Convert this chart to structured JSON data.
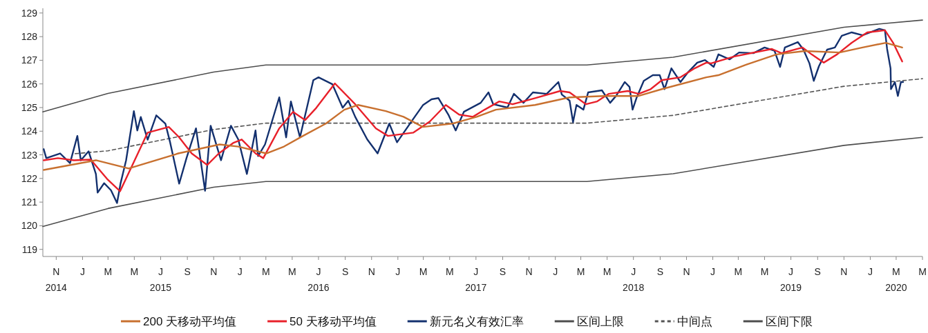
{
  "chart_data": {
    "type": "line",
    "xlim": [
      "2014-10-01",
      "2020-05-01"
    ],
    "ylim": [
      118.7,
      129.2
    ],
    "yticks": [
      119,
      120,
      121,
      122,
      123,
      124,
      125,
      126,
      127,
      128,
      129
    ],
    "xticks": [
      {
        "value": "2014-11-01",
        "label": "N\n2014"
      },
      {
        "value": "2015-01-01",
        "label": "J"
      },
      {
        "value": "2015-03-01",
        "label": "M"
      },
      {
        "value": "2015-05-01",
        "label": "M"
      },
      {
        "value": "2015-07-01",
        "label": "J\n2015"
      },
      {
        "value": "2015-09-01",
        "label": "S"
      },
      {
        "value": "2015-11-01",
        "label": "N"
      },
      {
        "value": "2016-01-01",
        "label": "J"
      },
      {
        "value": "2016-03-01",
        "label": "M"
      },
      {
        "value": "2016-05-01",
        "label": "M"
      },
      {
        "value": "2016-07-01",
        "label": "J\n2016"
      },
      {
        "value": "2016-09-01",
        "label": "S"
      },
      {
        "value": "2016-11-01",
        "label": "N"
      },
      {
        "value": "2017-01-01",
        "label": "J"
      },
      {
        "value": "2017-03-01",
        "label": "M"
      },
      {
        "value": "2017-05-01",
        "label": "M"
      },
      {
        "value": "2017-07-01",
        "label": "J\n2017"
      },
      {
        "value": "2017-09-01",
        "label": "S"
      },
      {
        "value": "2017-11-01",
        "label": "N"
      },
      {
        "value": "2018-01-01",
        "label": "J"
      },
      {
        "value": "2018-03-01",
        "label": "M"
      },
      {
        "value": "2018-05-01",
        "label": "M"
      },
      {
        "value": "2018-07-01",
        "label": "J\n2018"
      },
      {
        "value": "2018-09-01",
        "label": "S"
      },
      {
        "value": "2018-11-01",
        "label": "N"
      },
      {
        "value": "2019-01-01",
        "label": "J"
      },
      {
        "value": "2019-03-01",
        "label": "M"
      },
      {
        "value": "2019-05-01",
        "label": "M"
      },
      {
        "value": "2019-07-01",
        "label": "J\n2019"
      },
      {
        "value": "2019-09-01",
        "label": "S"
      },
      {
        "value": "2019-11-01",
        "label": "N"
      },
      {
        "value": "2020-01-01",
        "label": "J"
      },
      {
        "value": "2020-03-01",
        "label": "M\n2020"
      },
      {
        "value": "2020-05-01",
        "label": "M"
      }
    ],
    "grid": false,
    "legend": "bottom",
    "series": [
      {
        "name": "200 天移动平均值",
        "color": "#c8702f",
        "x": [
          "2014-10-03",
          "2015-02-01",
          "2015-04-18",
          "2015-08-11",
          "2015-11-15",
          "2015-12-28",
          "2016-03-02",
          "2016-04-12",
          "2016-05-26",
          "2016-07-18",
          "2016-08-30",
          "2016-10-01",
          "2016-12-04",
          "2017-01-14",
          "2017-02-28",
          "2017-05-07",
          "2017-07-03",
          "2017-08-16",
          "2017-11-15",
          "2018-02-03",
          "2018-04-24",
          "2018-07-13",
          "2018-09-05",
          "2018-12-17",
          "2019-01-14",
          "2019-03-19",
          "2019-05-29",
          "2019-08-02",
          "2019-10-22",
          "2019-12-14",
          "2020-02-06",
          "2020-03-15"
        ],
        "values": [
          122.36,
          122.77,
          122.42,
          123.06,
          123.44,
          123.35,
          123.06,
          123.35,
          123.8,
          124.32,
          124.91,
          125.11,
          124.85,
          124.61,
          124.18,
          124.32,
          124.61,
          124.91,
          125.11,
          125.43,
          125.49,
          125.49,
          125.78,
          126.28,
          126.37,
          126.81,
          127.25,
          127.39,
          127.33,
          127.54,
          127.74,
          127.54
        ]
      },
      {
        "name": "50 天移动平均值",
        "color": "#e8202a",
        "x": [
          "2014-10-03",
          "2014-11-05",
          "2014-12-12",
          "2015-01-20",
          "2015-02-27",
          "2015-03-29",
          "2015-04-29",
          "2015-06-01",
          "2015-07-20",
          "2015-08-13",
          "2015-09-11",
          "2015-10-17",
          "2015-11-13",
          "2015-12-16",
          "2016-01-05",
          "2016-02-06",
          "2016-02-24",
          "2016-04-01",
          "2016-05-03",
          "2016-05-31",
          "2016-06-26",
          "2016-08-08",
          "2016-09-24",
          "2016-11-11",
          "2016-12-09",
          "2017-02-06",
          "2017-03-16",
          "2017-04-22",
          "2017-05-23",
          "2017-06-24",
          "2017-07-21",
          "2017-08-24",
          "2017-09-24",
          "2017-11-15",
          "2018-01-12",
          "2018-02-03",
          "2018-03-13",
          "2018-04-08",
          "2018-05-05",
          "2018-06-18",
          "2018-07-13",
          "2018-08-10",
          "2018-09-05",
          "2018-10-18",
          "2018-11-20",
          "2018-12-17",
          "2018-12-28",
          "2019-02-20",
          "2019-05-18",
          "2019-06-09",
          "2019-07-28",
          "2019-08-18",
          "2019-09-15",
          "2019-10-16",
          "2019-11-19",
          "2019-12-25",
          "2020-02-04",
          "2020-02-23",
          "2020-03-15"
        ],
        "values": [
          122.77,
          122.86,
          122.77,
          122.8,
          121.98,
          121.46,
          122.66,
          123.94,
          124.18,
          123.74,
          123.06,
          122.57,
          123.06,
          123.5,
          123.65,
          123.06,
          122.86,
          124.12,
          124.82,
          124.47,
          124.99,
          126.02,
          125.14,
          124.12,
          123.8,
          123.94,
          124.41,
          125.11,
          124.7,
          124.61,
          124.91,
          125.26,
          125.14,
          125.4,
          125.7,
          125.64,
          125.14,
          125.26,
          125.58,
          125.7,
          125.58,
          125.78,
          126.16,
          126.28,
          126.66,
          126.9,
          126.87,
          127.16,
          127.48,
          127.3,
          127.54,
          127.25,
          126.9,
          127.25,
          127.74,
          128.18,
          128.27,
          127.74,
          126.95
        ]
      },
      {
        "name": "新元名义有效汇率",
        "color": "#13306e",
        "x": [
          "2014-10-03",
          "2014-10-09",
          "2014-11-10",
          "2014-12-03",
          "2014-12-20",
          "2014-12-28",
          "2015-01-15",
          "2015-02-01",
          "2015-02-05",
          "2015-02-20",
          "2015-03-08",
          "2015-03-22",
          "2015-03-30",
          "2015-04-12",
          "2015-04-30",
          "2015-05-08",
          "2015-05-16",
          "2015-06-01",
          "2015-06-21",
          "2015-07-12",
          "2015-07-23",
          "2015-08-13",
          "2015-08-30",
          "2015-09-21",
          "2015-10-12",
          "2015-10-25",
          "2015-11-18",
          "2015-12-11",
          "2015-12-28",
          "2016-01-17",
          "2016-02-06",
          "2016-02-12",
          "2016-02-28",
          "2016-04-01",
          "2016-04-17",
          "2016-04-28",
          "2016-05-19",
          "2016-06-19",
          "2016-07-01",
          "2016-08-02",
          "2016-08-26",
          "2016-09-08",
          "2016-09-24",
          "2016-10-22",
          "2016-11-15",
          "2016-12-12",
          "2016-12-30",
          "2017-02-06",
          "2017-02-28",
          "2017-03-20",
          "2017-04-05",
          "2017-04-28",
          "2017-05-15",
          "2017-06-03",
          "2017-07-12",
          "2017-07-30",
          "2017-08-10",
          "2017-09-12",
          "2017-09-27",
          "2017-10-19",
          "2017-11-10",
          "2017-12-12",
          "2018-01-08",
          "2018-01-16",
          "2018-02-03",
          "2018-02-11",
          "2018-02-19",
          "2018-03-07",
          "2018-03-18",
          "2018-04-19",
          "2018-05-08",
          "2018-05-22",
          "2018-06-11",
          "2018-06-22",
          "2018-06-29",
          "2018-07-08",
          "2018-07-25",
          "2018-08-15",
          "2018-08-31",
          "2018-09-11",
          "2018-09-27",
          "2018-10-18",
          "2018-11-03",
          "2018-11-26",
          "2018-12-14",
          "2019-01-03",
          "2019-01-14",
          "2019-02-09",
          "2019-03-03",
          "2019-04-05",
          "2019-05-01",
          "2019-05-24",
          "2019-06-06",
          "2019-06-17",
          "2019-07-17",
          "2019-07-30",
          "2019-08-13",
          "2019-08-23",
          "2019-09-04",
          "2019-09-23",
          "2019-10-11",
          "2019-10-27",
          "2019-11-19",
          "2019-12-14",
          "2020-01-22",
          "2020-02-04",
          "2020-02-09",
          "2020-02-17",
          "2020-02-18",
          "2020-02-27",
          "2020-03-05",
          "2020-03-12",
          "2020-03-17"
        ],
        "values": [
          123.24,
          122.86,
          123.06,
          122.65,
          123.8,
          122.77,
          123.15,
          122.19,
          121.4,
          121.8,
          121.5,
          120.96,
          121.78,
          122.77,
          124.85,
          124.03,
          124.6,
          123.64,
          124.67,
          124.32,
          123.53,
          121.78,
          122.86,
          124.12,
          121.48,
          124.23,
          122.77,
          124.23,
          123.65,
          122.19,
          124.03,
          122.95,
          123.44,
          125.43,
          123.74,
          125.26,
          123.74,
          126.16,
          126.28,
          125.99,
          124.99,
          125.29,
          124.61,
          123.65,
          123.06,
          124.32,
          123.53,
          124.53,
          125.1,
          125.35,
          125.4,
          124.7,
          124.03,
          124.82,
          125.2,
          125.64,
          125.14,
          125.0,
          125.58,
          125.2,
          125.64,
          125.58,
          126.08,
          125.55,
          125.29,
          124.38,
          125.11,
          124.91,
          125.64,
          125.73,
          125.2,
          125.5,
          126.08,
          125.87,
          124.91,
          125.4,
          126.13,
          126.37,
          126.37,
          125.78,
          126.66,
          126.08,
          126.46,
          126.9,
          127.01,
          126.72,
          127.25,
          127.04,
          127.33,
          127.3,
          127.54,
          127.4,
          126.72,
          127.54,
          127.77,
          127.45,
          126.87,
          126.13,
          126.75,
          127.45,
          127.54,
          128.04,
          128.18,
          128.06,
          128.33,
          128.27,
          127.48,
          126.66,
          125.78,
          126.08,
          125.49,
          126.08,
          126.08
        ]
      },
      {
        "name": "区间上限",
        "color": "#4d4d4d",
        "x": [
          "2014-10-01",
          "2015-03-01",
          "2015-11-01",
          "2016-03-01",
          "2018-03-15",
          "2018-10-01",
          "2019-11-01",
          "2020-05-01"
        ],
        "values": [
          124.82,
          125.6,
          126.5,
          126.8,
          126.8,
          127.13,
          128.4,
          128.7
        ]
      },
      {
        "name": "中间点",
        "color": "#555555",
        "line_style": "dashed",
        "x": [
          "2014-12-15",
          "2015-03-01",
          "2015-11-01",
          "2016-03-01",
          "2018-03-15",
          "2018-10-01",
          "2019-11-01",
          "2020-05-01"
        ],
        "values": [
          123.05,
          123.17,
          124.07,
          124.34,
          124.34,
          124.67,
          125.9,
          126.22
        ]
      },
      {
        "name": "区间下限",
        "color": "#4d4d4d",
        "x": [
          "2014-10-01",
          "2015-03-01",
          "2015-11-01",
          "2016-03-01",
          "2018-03-15",
          "2018-10-01",
          "2019-11-01",
          "2020-05-01"
        ],
        "values": [
          119.97,
          120.73,
          121.63,
          121.87,
          121.87,
          122.2,
          123.4,
          123.74
        ]
      }
    ]
  }
}
